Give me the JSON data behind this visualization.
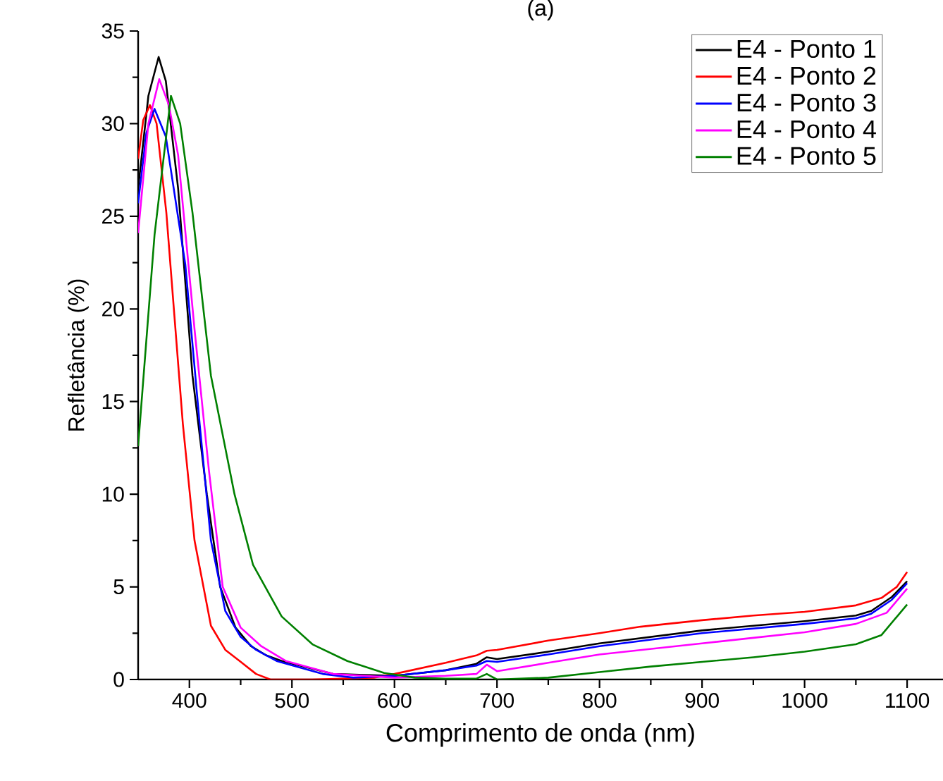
{
  "chart_data": {
    "type": "line",
    "title": "(a)",
    "xlabel": "Comprimento de onda (nm)",
    "ylabel": "Refletância (%)",
    "xlim": [
      350,
      1135
    ],
    "ylim": [
      0,
      35
    ],
    "xticks": [
      400,
      500,
      600,
      700,
      800,
      900,
      1000,
      1100
    ],
    "yticks": [
      0,
      5,
      10,
      15,
      20,
      25,
      30,
      35
    ],
    "grid": false,
    "legend": "top right",
    "marker": "none",
    "line_style": "solid",
    "series": [
      {
        "name": "E4 - Ponto 1",
        "color": "#000000",
        "x": [
          350,
          360,
          370,
          377,
          389,
          403,
          417,
          430,
          445,
          460,
          475,
          490,
          540,
          600,
          650,
          680,
          690,
          700,
          750,
          800,
          850,
          900,
          950,
          1000,
          1050,
          1065,
          1085,
          1100
        ],
        "values": [
          26.5,
          31.5,
          33.6,
          32.3,
          26.5,
          16.4,
          10,
          5,
          2.8,
          1.8,
          1.3,
          1.0,
          0.3,
          0.2,
          0.5,
          0.85,
          1.2,
          1.1,
          1.5,
          1.95,
          2.3,
          2.65,
          2.9,
          3.15,
          3.45,
          3.7,
          4.45,
          5.3
        ]
      },
      {
        "name": "E4 - Ponto 2",
        "color": "#ff0000",
        "x": [
          350,
          355,
          361.5,
          368,
          377.5,
          393.6,
          405,
          421,
          435,
          449,
          465,
          479,
          520,
          580,
          600,
          650,
          680,
          690,
          700,
          750,
          800,
          840,
          900,
          950,
          1000,
          1050,
          1075,
          1090,
          1100
        ],
        "values": [
          28.1,
          30.2,
          31.0,
          30.0,
          25.2,
          13.8,
          7.5,
          2.9,
          1.6,
          1.0,
          0.3,
          0.0,
          0.0,
          0.1,
          0.3,
          0.9,
          1.3,
          1.55,
          1.6,
          2.1,
          2.5,
          2.85,
          3.2,
          3.45,
          3.65,
          4.0,
          4.4,
          5.0,
          5.8
        ]
      },
      {
        "name": "E4 - Ponto 3",
        "color": "#0000ff",
        "x": [
          350,
          358,
          366,
          377,
          396,
          410,
          421,
          435,
          450,
          465,
          485,
          530,
          560,
          600,
          650,
          680,
          690,
          700,
          750,
          800,
          850,
          900,
          950,
          1000,
          1050,
          1065,
          1085,
          1100
        ],
        "values": [
          25.7,
          29.5,
          30.8,
          29.3,
          22.4,
          13.8,
          7.5,
          3.7,
          2.3,
          1.6,
          1.0,
          0.3,
          0.1,
          0.2,
          0.5,
          0.75,
          1.0,
          0.95,
          1.35,
          1.8,
          2.15,
          2.5,
          2.75,
          3.0,
          3.3,
          3.55,
          4.3,
          5.2
        ]
      },
      {
        "name": "E4 - Ponto 4",
        "color": "#ff00ff",
        "x": [
          350,
          360,
          370.6,
          380,
          389,
          405,
          419,
          432.5,
          450,
          470,
          494,
          540,
          600,
          650,
          680,
          690,
          700,
          750,
          800,
          850,
          900,
          950,
          1000,
          1050,
          1080,
          1100
        ],
        "values": [
          24.1,
          30.0,
          32.4,
          31.0,
          28.3,
          18.9,
          11.3,
          5.0,
          2.8,
          1.8,
          1.0,
          0.3,
          0.1,
          0.2,
          0.3,
          0.8,
          0.45,
          0.9,
          1.35,
          1.65,
          1.95,
          2.25,
          2.55,
          3.0,
          3.6,
          4.9
        ]
      },
      {
        "name": "E4 - Ponto 5",
        "color": "#008000",
        "x": [
          350,
          366,
          382,
          391,
          403,
          421,
          444,
          462,
          490,
          520,
          554,
          590,
          620,
          650,
          680,
          690,
          700,
          750,
          800,
          850,
          900,
          950,
          1000,
          1050,
          1075,
          1100
        ],
        "values": [
          12.6,
          24.0,
          31.5,
          30.0,
          25.2,
          16.4,
          10,
          6.2,
          3.4,
          1.9,
          1.0,
          0.35,
          0.1,
          0.05,
          0.05,
          0.3,
          0.0,
          0.1,
          0.4,
          0.7,
          0.95,
          1.2,
          1.5,
          1.9,
          2.4,
          4.05
        ]
      }
    ]
  }
}
